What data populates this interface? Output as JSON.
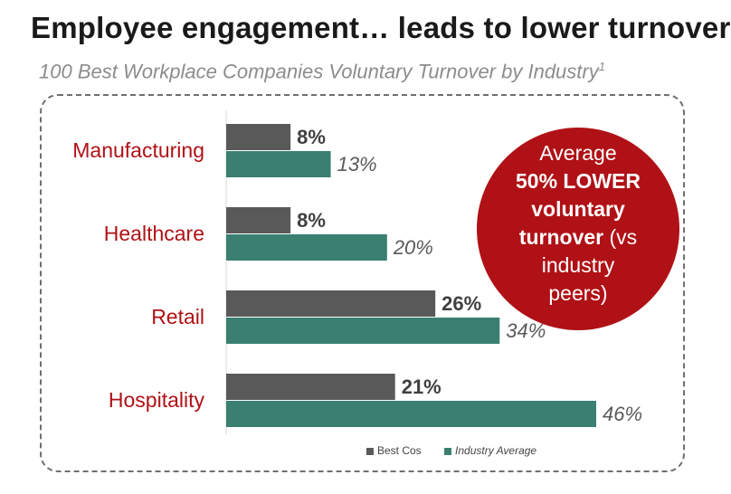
{
  "header": {
    "title": "Employee engagement… leads to lower turnover",
    "subtitle": "100 Best Workplace Companies Voluntary Turnover by Industry",
    "subtitle_footnote": "1"
  },
  "callout": {
    "line1": "Average",
    "line2": "50% LOWER",
    "line3": "voluntary",
    "line4_bold": "turnover",
    "line4_rest": " (vs",
    "line5": "industry",
    "line6": "peers)"
  },
  "chart_data": {
    "type": "bar",
    "orientation": "horizontal",
    "categories": [
      "Manufacturing",
      "Healthcare",
      "Retail",
      "Hospitality"
    ],
    "series": [
      {
        "name": "Best Cos",
        "values": [
          8,
          8,
          26,
          21
        ],
        "labels": [
          "8%",
          "8%",
          "26%",
          "21%"
        ],
        "color": "#595959"
      },
      {
        "name": "Industry Average",
        "values": [
          13,
          20,
          34,
          46
        ],
        "labels": [
          "13%",
          "20%",
          "34%",
          "46%"
        ],
        "color": "#3a7f72"
      }
    ],
    "category_label_color": "#b01116",
    "xlim": [
      0,
      46
    ]
  }
}
